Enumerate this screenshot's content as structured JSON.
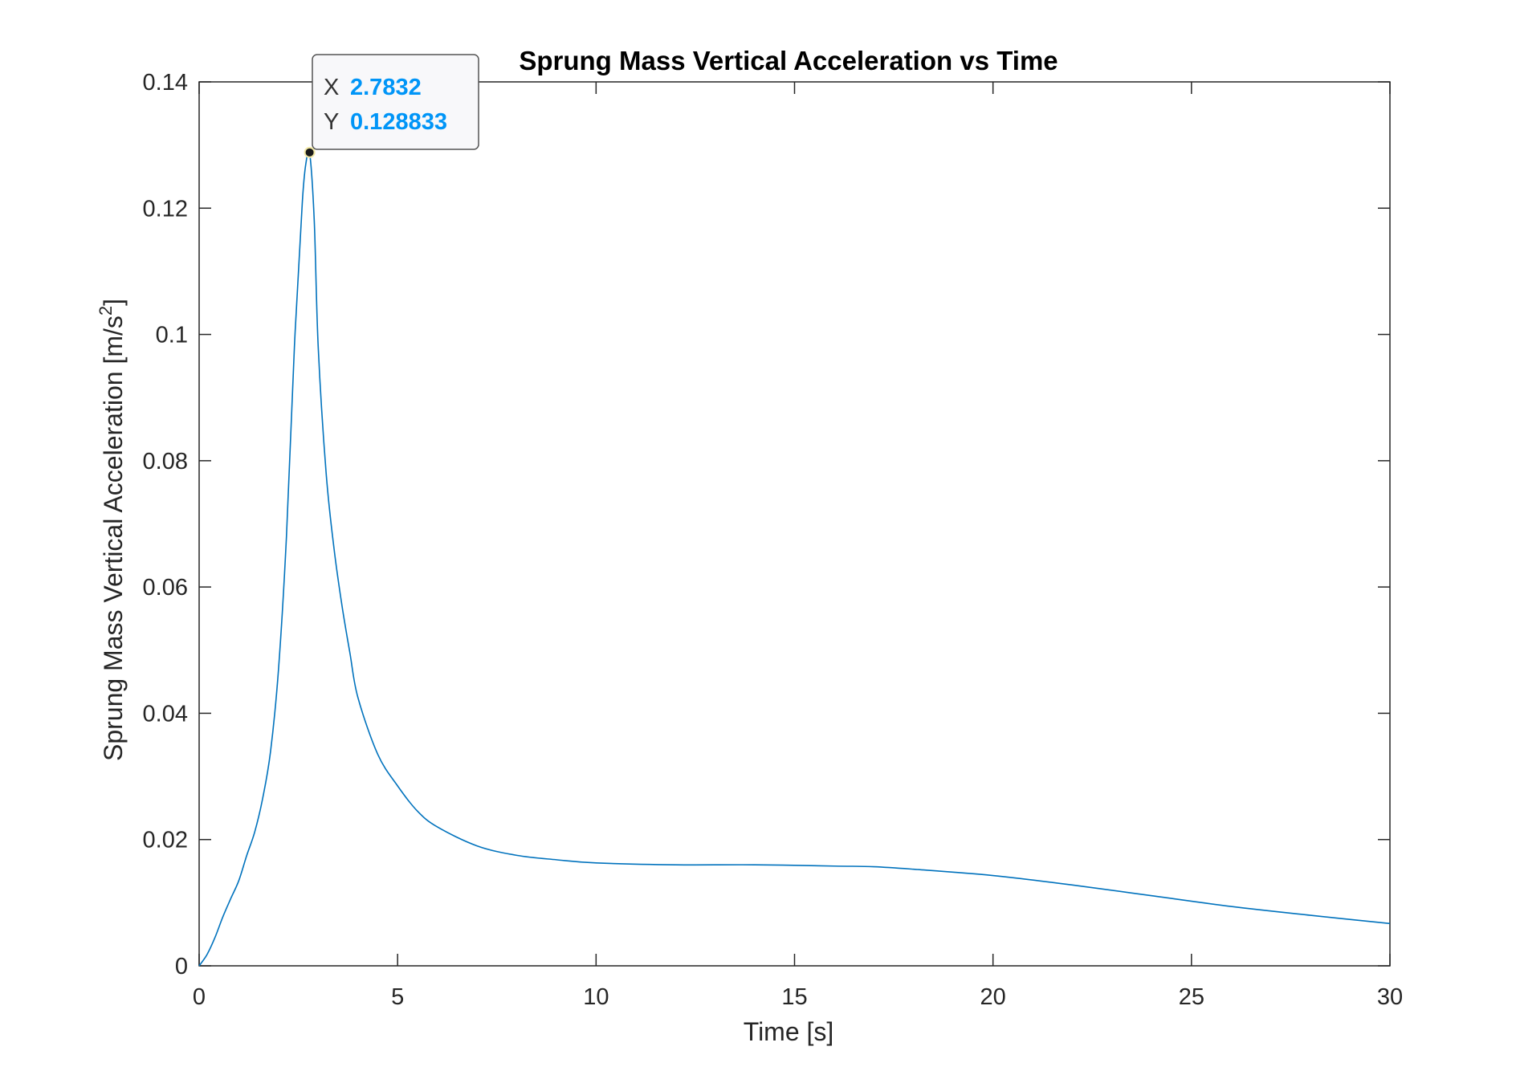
{
  "chart_data": {
    "type": "line",
    "title": "Sprung Mass Vertical Acceleration vs Time",
    "xlabel": "Time [s]",
    "ylabel_main": "Sprung Mass Vertical Acceleration [m/s",
    "ylabel_sup": "2",
    "ylabel_close": "]",
    "xlim": [
      0,
      30
    ],
    "ylim": [
      0,
      0.14
    ],
    "xticks": [
      0,
      5,
      10,
      15,
      20,
      25,
      30
    ],
    "xtick_labels": [
      "0",
      "5",
      "10",
      "15",
      "20",
      "25",
      "30"
    ],
    "yticks": [
      0,
      0.02,
      0.04,
      0.06,
      0.08,
      0.1,
      0.12,
      0.14
    ],
    "ytick_labels": [
      "0",
      "0.02",
      "0.04",
      "0.06",
      "0.08",
      "0.1",
      "0.12",
      "0.14"
    ],
    "grid": false,
    "series": [
      {
        "name": "Sprung Mass Vertical Acceleration",
        "color": "#0072BD",
        "x": [
          0,
          0.2,
          0.4,
          0.6,
          0.8,
          1.0,
          1.2,
          1.4,
          1.6,
          1.8,
          2.0,
          2.2,
          2.4,
          2.6,
          2.7,
          2.7832,
          2.9,
          3.0,
          3.2,
          3.4,
          3.6,
          3.8,
          4.0,
          4.5,
          5.0,
          5.5,
          6.0,
          7.0,
          8.0,
          9.0,
          10.0,
          12.0,
          14.0,
          16.0,
          17.0,
          18.0,
          20.0,
          22.0,
          24.0,
          26.0,
          28.0,
          30.0
        ],
        "y": [
          0,
          0.0018,
          0.0045,
          0.0078,
          0.0107,
          0.0135,
          0.0175,
          0.0212,
          0.0265,
          0.034,
          0.047,
          0.068,
          0.098,
          0.121,
          0.1275,
          0.128833,
          0.118,
          0.098,
          0.078,
          0.066,
          0.057,
          0.0495,
          0.0425,
          0.0335,
          0.0285,
          0.0245,
          0.022,
          0.019,
          0.0175,
          0.0168,
          0.0163,
          0.016,
          0.016,
          0.0158,
          0.0157,
          0.0153,
          0.0143,
          0.0128,
          0.0111,
          0.0094,
          0.008,
          0.0067
        ]
      }
    ],
    "datatip": {
      "x_label": "X",
      "x_value": "2.7832",
      "y_label": "Y",
      "y_value": "0.128833",
      "x": 2.7832,
      "y": 0.128833,
      "value_color": "#0095F7"
    }
  }
}
